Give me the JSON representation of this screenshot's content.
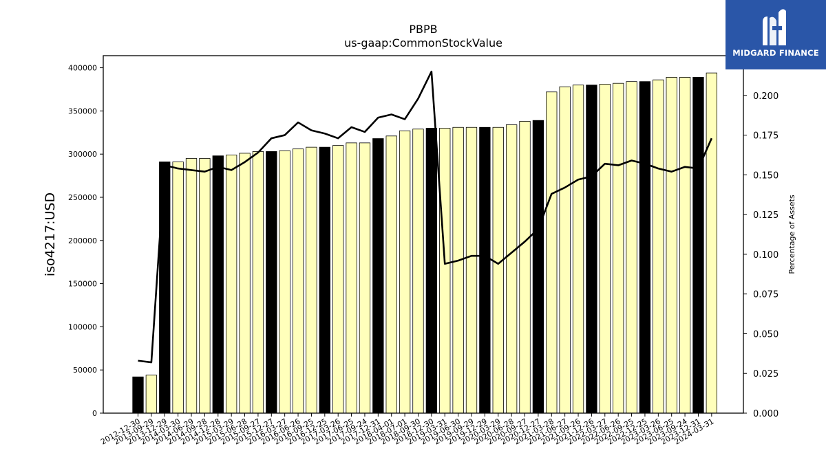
{
  "chart_data": {
    "type": "bar",
    "title": "PBPB",
    "subtitle": "us-gaap:CommonStockValue",
    "ylabel": "iso4217:USD",
    "ylabel_right": "Percentage of Assets",
    "ylim": [
      0,
      414000
    ],
    "ylim_right": [
      0,
      0.225
    ],
    "yticks": [
      0,
      50000,
      100000,
      150000,
      200000,
      250000,
      300000,
      350000,
      400000
    ],
    "yticks_right": [
      "0.000",
      "0.025",
      "0.050",
      "0.075",
      "0.100",
      "0.125",
      "0.150",
      "0.175",
      "0.200"
    ],
    "categories": [
      "2012-12-30",
      "2013-09-29",
      "2013-12-29",
      "2014-03-30",
      "2014-06-29",
      "2014-09-28",
      "2014-12-28",
      "2015-03-29",
      "2015-06-28",
      "2015-09-27",
      "2015-12-27",
      "2016-03-27",
      "2016-06-26",
      "2016-09-25",
      "2016-12-25",
      "2017-03-26",
      "2017-06-25",
      "2017-09-24",
      "2017-12-31",
      "2018-04-01",
      "2018-07-01",
      "2018-09-30",
      "2018-12-30",
      "2019-03-31",
      "2019-06-30",
      "2019-09-29",
      "2019-12-29",
      "2020-03-29",
      "2020-06-28",
      "2020-09-27",
      "2020-12-27",
      "2021-03-28",
      "2021-06-27",
      "2021-09-26",
      "2021-12-26",
      "2022-03-27",
      "2022-06-26",
      "2022-09-25",
      "2022-12-25",
      "2023-03-26",
      "2023-06-25",
      "2023-09-24",
      "2023-12-31",
      "2024-03-31"
    ],
    "series": [
      {
        "type": "bar",
        "values": [
          42000,
          44000,
          291000,
          291000,
          295000,
          295000,
          298000,
          299000,
          301000,
          303000,
          303000,
          304000,
          306000,
          308000,
          308000,
          310000,
          313000,
          313000,
          318000,
          321000,
          327000,
          329000,
          330000,
          330000,
          331000,
          331000,
          331000,
          331000,
          334000,
          338000,
          339000,
          372000,
          378000,
          380000,
          380000,
          381000,
          382000,
          384000,
          384000,
          386000,
          389000,
          389000,
          389000,
          394000
        ],
        "highlight": [
          true,
          false,
          true,
          false,
          false,
          false,
          true,
          false,
          false,
          false,
          true,
          false,
          false,
          false,
          true,
          false,
          false,
          false,
          true,
          false,
          false,
          false,
          true,
          false,
          false,
          false,
          true,
          false,
          false,
          false,
          true,
          false,
          false,
          false,
          true,
          false,
          false,
          false,
          true,
          false,
          false,
          false,
          true,
          false
        ]
      },
      {
        "type": "line",
        "axis": "right",
        "values": [
          0.033,
          0.032,
          0.156,
          0.154,
          0.153,
          0.152,
          0.155,
          0.153,
          0.158,
          0.164,
          0.173,
          0.175,
          0.183,
          0.178,
          0.176,
          0.173,
          0.18,
          0.177,
          0.186,
          0.188,
          0.185,
          0.198,
          0.215,
          0.094,
          0.096,
          0.099,
          0.099,
          0.094,
          0.101,
          0.108,
          0.116,
          0.138,
          0.142,
          0.147,
          0.149,
          0.157,
          0.156,
          0.159,
          0.157,
          0.154,
          0.152,
          0.155,
          0.154,
          0.173
        ]
      }
    ],
    "colors": {
      "bar": "#ffffbb",
      "bar_highlight": "#000000",
      "line": "#000000"
    },
    "grid": false
  },
  "logo": {
    "text": "MIDGARD FINANCE",
    "background": "#2a56a8"
  }
}
